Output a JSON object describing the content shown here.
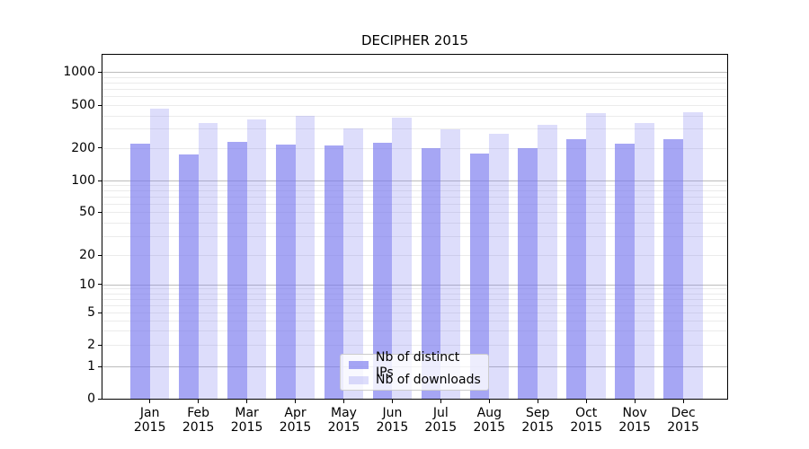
{
  "title": "DECIPHER 2015",
  "legend": {
    "items": [
      {
        "label": "Nb of distinct IPs"
      },
      {
        "label": "Nb of downloads"
      }
    ]
  },
  "colors": {
    "bar_base": "#7777ee",
    "series1_rendered": "#a6a6f4",
    "series2_rendered": "#ddddfb",
    "grid_major": "#bcbcbc",
    "grid_minor": "#ebebeb",
    "legend_border": "#cccccc",
    "text": "#000000"
  },
  "chart_data": {
    "type": "bar",
    "title": "DECIPHER 2015",
    "xlabel": "",
    "ylabel": "",
    "yscale": "asinh/symlog (log above ~10, compressed linear toward 0)",
    "ylim": [
      0,
      1400
    ],
    "yticks": [
      0,
      1,
      2,
      5,
      10,
      20,
      50,
      100,
      200,
      500,
      1000
    ],
    "grid": "major and minor horizontal gridlines (log decades)",
    "legend_position": "lower center inside axes",
    "categories": [
      "Jan 2015",
      "Feb 2015",
      "Mar 2015",
      "Apr 2015",
      "May 2015",
      "Jun 2015",
      "Jul 2015",
      "Aug 2015",
      "Sep 2015",
      "Oct 2015",
      "Nov 2015",
      "Dec 2015"
    ],
    "series": [
      {
        "name": "Nb of distinct IPs",
        "color": "#7777ee",
        "alpha": 0.65,
        "values": [
          218,
          174,
          227,
          214,
          210,
          222,
          198,
          177,
          197,
          240,
          218,
          240
        ]
      },
      {
        "name": "Nb of downloads",
        "color": "#7777ee",
        "alpha": 0.25,
        "values": [
          462,
          340,
          367,
          396,
          303,
          382,
          297,
          270,
          327,
          420,
          340,
          428
        ]
      }
    ]
  }
}
